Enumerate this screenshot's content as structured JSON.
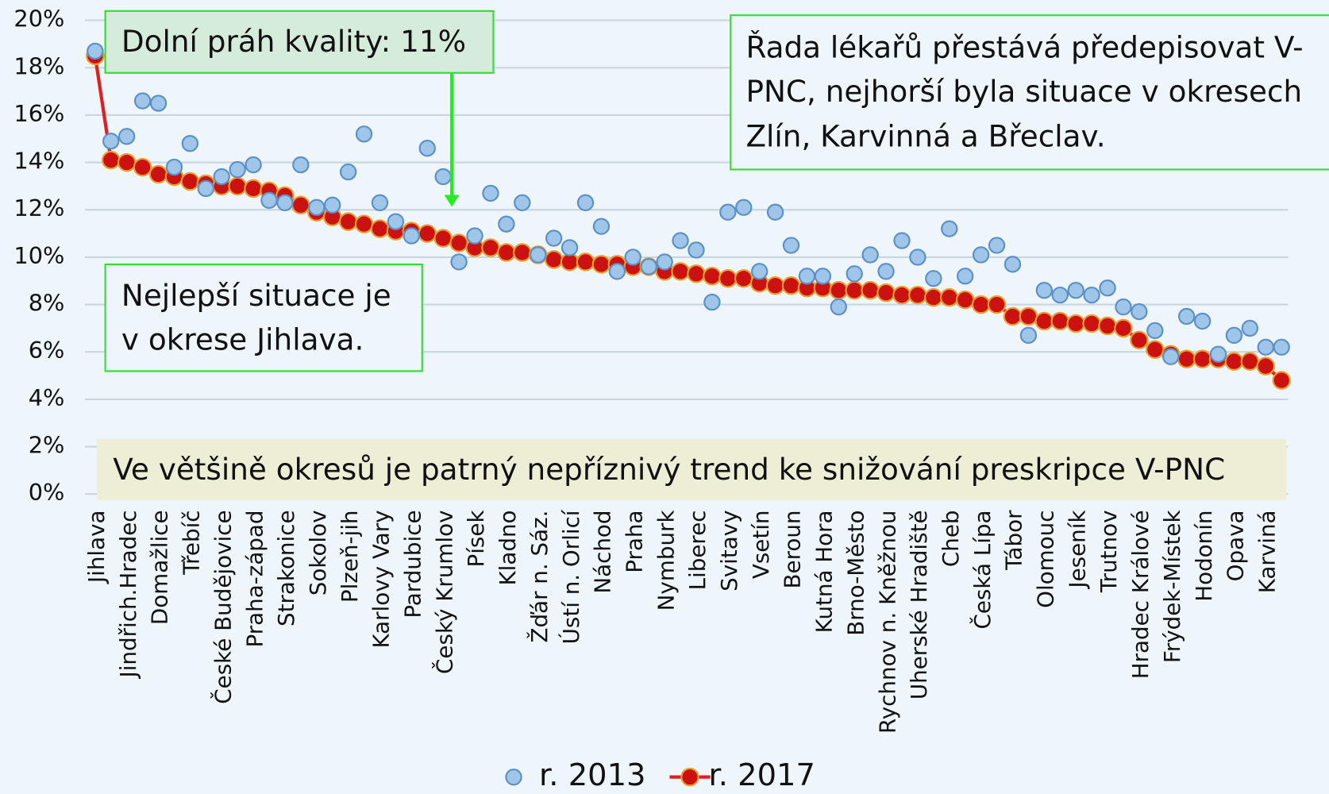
{
  "chart_data": {
    "type": "scatter-line",
    "categories": [
      "Jihlava",
      null,
      "Jindřich.Hradec",
      null,
      "Domažlice",
      null,
      "Třebíč",
      null,
      "České Budějovice",
      null,
      "Praha-západ",
      null,
      "Strakonice",
      null,
      "Sokolov",
      null,
      "Plzeň-jih",
      null,
      "Karlovy Vary",
      null,
      "Pardubice",
      null,
      "Český Krumlov",
      null,
      "Písek",
      null,
      "Kladno",
      null,
      "Žďár n. Sáz.",
      null,
      "Ústí n. Orlicí",
      null,
      "Náchod",
      null,
      "Praha",
      null,
      "Nymburk",
      null,
      "Liberec",
      null,
      "Svitavy",
      null,
      "Vsetín",
      null,
      "Beroun",
      null,
      "Kutná Hora",
      null,
      "Brno-Město",
      null,
      "Rychnov n. Kněžnou",
      null,
      "Uherské Hradiště",
      null,
      "Cheb",
      null,
      "Česká Lípa",
      null,
      "Tábor",
      null,
      "Olomouc",
      null,
      "Jeseník",
      null,
      "Trutnov",
      null,
      "Hradec Králové",
      null,
      "Frýdek-Místek",
      null,
      "Hodonín",
      null,
      "Opava",
      null,
      "Karviná",
      null
    ],
    "series": [
      {
        "name": "r. 2013",
        "color": "#9fc5e8",
        "line": false,
        "values": [
          18.7,
          14.9,
          15.1,
          16.6,
          16.5,
          13.8,
          14.8,
          12.9,
          13.4,
          13.7,
          13.9,
          12.4,
          12.3,
          13.9,
          12.1,
          12.2,
          13.6,
          15.2,
          12.3,
          11.5,
          10.9,
          14.6,
          13.4,
          9.8,
          10.9,
          12.7,
          11.4,
          12.3,
          10.1,
          10.8,
          10.4,
          12.3,
          11.3,
          9.4,
          10.0,
          9.6,
          9.8,
          10.7,
          10.3,
          8.1,
          11.9,
          12.1,
          9.4,
          11.9,
          10.5,
          9.2,
          9.2,
          7.9,
          9.3,
          10.1,
          9.4,
          10.7,
          10.0,
          9.1,
          11.2,
          9.2,
          10.1,
          10.5,
          9.7,
          6.7,
          8.6,
          8.4,
          8.6,
          8.4,
          8.7,
          7.9,
          7.7,
          6.9,
          5.8,
          7.5,
          7.3,
          5.9,
          6.7,
          7.0,
          6.2,
          6.2
        ]
      },
      {
        "name": "r. 2017",
        "color": "#cc1111",
        "line": true,
        "values": [
          18.5,
          14.1,
          14.0,
          13.8,
          13.5,
          13.4,
          13.2,
          13.1,
          13.0,
          13.0,
          12.9,
          12.8,
          12.6,
          12.2,
          11.9,
          11.7,
          11.5,
          11.4,
          11.2,
          11.1,
          11.1,
          11.0,
          10.8,
          10.6,
          10.4,
          10.4,
          10.2,
          10.2,
          10.1,
          9.9,
          9.8,
          9.8,
          9.7,
          9.7,
          9.6,
          9.6,
          9.4,
          9.4,
          9.3,
          9.2,
          9.1,
          9.1,
          8.9,
          8.8,
          8.8,
          8.7,
          8.7,
          8.6,
          8.6,
          8.6,
          8.5,
          8.4,
          8.4,
          8.3,
          8.3,
          8.2,
          8.0,
          8.0,
          7.5,
          7.5,
          7.3,
          7.3,
          7.2,
          7.2,
          7.1,
          7.0,
          6.5,
          6.1,
          5.9,
          5.7,
          5.7,
          5.7,
          5.6,
          5.6,
          5.4,
          4.8
        ]
      }
    ],
    "ylim": [
      0,
      20
    ],
    "yticks": [
      {
        "value": 0,
        "label": "0%"
      },
      {
        "value": 2,
        "label": "2%"
      },
      {
        "value": 4,
        "label": "4%"
      },
      {
        "value": 6,
        "label": "6%"
      },
      {
        "value": 8,
        "label": "8%"
      },
      {
        "value": 10,
        "label": "10%"
      },
      {
        "value": 12,
        "label": "12%"
      },
      {
        "value": 14,
        "label": "14%"
      },
      {
        "value": 16,
        "label": "16%"
      },
      {
        "value": 18,
        "label": "18%"
      },
      {
        "value": 20,
        "label": "20%"
      }
    ],
    "grid": true,
    "legend": "bottom",
    "annotations": [
      {
        "lines": [
          "Dolní práh kvality: 11%"
        ]
      },
      {
        "lines": [
          "Řada lékařů přestává předepisovat V-",
          "PNC, nejhorší byla situace v okresech",
          "Zlín, Karvinná a Břeclav."
        ]
      },
      {
        "lines": [
          "Nejlepší situace je",
          "v okrese Jihlava."
        ]
      },
      {
        "lines": [
          "Ve většině okresů je patrný nepříznivý trend ke snižování preskripce V-PNC"
        ]
      }
    ]
  }
}
